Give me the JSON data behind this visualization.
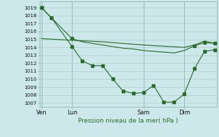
{
  "bg_color": "#cde8ea",
  "grid_color": "#aacccc",
  "line_color": "#2a6b2a",
  "title": "Pression niveau de la mer( hPa )",
  "ylim": [
    1006.5,
    1019.8
  ],
  "yticks": [
    1007,
    1008,
    1009,
    1010,
    1011,
    1012,
    1013,
    1014,
    1015,
    1016,
    1017,
    1018,
    1019
  ],
  "xtick_labels": [
    "Ven",
    "Lun",
    "Sam",
    "Dim"
  ],
  "xtick_positions": [
    0,
    3,
    10,
    14
  ],
  "xlim": [
    -0.2,
    17.2
  ],
  "vlines": [
    0,
    3,
    10,
    14
  ],
  "line_flat_x": [
    0,
    3,
    6,
    10,
    14,
    15,
    16,
    17
  ],
  "line_flat_y": [
    1015.1,
    1014.9,
    1014.7,
    1014.3,
    1014.0,
    1014.3,
    1014.8,
    1014.5
  ],
  "line_high_x": [
    0,
    1,
    3,
    4,
    5,
    6,
    7,
    8,
    9,
    10,
    11,
    12,
    13,
    14,
    15,
    16,
    17
  ],
  "line_high_y": [
    1019.0,
    1017.7,
    1015.1,
    1014.7,
    1014.5,
    1014.3,
    1014.1,
    1013.9,
    1013.8,
    1013.6,
    1013.5,
    1013.4,
    1013.3,
    1013.6,
    1014.2,
    1014.6,
    1014.5
  ],
  "line_dip_x": [
    0,
    1,
    3,
    4,
    5,
    6,
    7,
    8,
    9,
    10,
    11,
    12,
    13,
    14,
    15,
    16,
    17
  ],
  "line_dip_y": [
    1019.0,
    1017.7,
    1014.1,
    1012.3,
    1011.7,
    1011.7,
    1010.0,
    1008.5,
    1008.2,
    1008.3,
    1009.2,
    1007.1,
    1007.1,
    1008.1,
    1011.3,
    1013.5,
    1013.7
  ]
}
